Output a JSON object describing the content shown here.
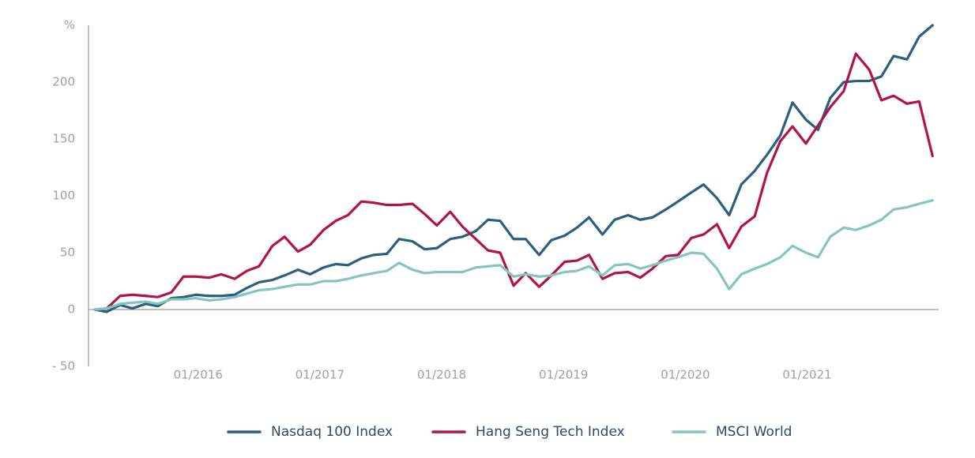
{
  "chart_data": {
    "type": "line",
    "x": [
      2015.15,
      2015.25,
      2015.36,
      2015.46,
      2015.57,
      2015.67,
      2015.78,
      2015.88,
      2015.98,
      2016.09,
      2016.19,
      2016.3,
      2016.4,
      2016.5,
      2016.61,
      2016.71,
      2016.82,
      2016.92,
      2017.03,
      2017.13,
      2017.23,
      2017.34,
      2017.44,
      2017.55,
      2017.65,
      2017.76,
      2017.86,
      2017.96,
      2018.07,
      2018.17,
      2018.28,
      2018.38,
      2018.48,
      2018.59,
      2018.69,
      2018.8,
      2018.9,
      2019.01,
      2019.11,
      2019.21,
      2019.32,
      2019.42,
      2019.53,
      2019.63,
      2019.73,
      2019.84,
      2019.94,
      2020.05,
      2020.15,
      2020.26,
      2020.36,
      2020.46,
      2020.57,
      2020.67,
      2020.78,
      2020.88,
      2020.99,
      2021.09,
      2021.19,
      2021.3,
      2021.4,
      2021.51,
      2021.61,
      2021.71,
      2021.82,
      2021.92,
      2022.03
    ],
    "series": [
      {
        "name": "Nasdaq 100 Index",
        "color": "#2b5f80",
        "values": [
          0,
          -2,
          4,
          1,
          5,
          3,
          10,
          11,
          13,
          12,
          12,
          13,
          19,
          24,
          26,
          30,
          35,
          31,
          37,
          40,
          39,
          45,
          48,
          49,
          62,
          60,
          53,
          54,
          62,
          64,
          69,
          79,
          78,
          62,
          62,
          48,
          61,
          65,
          72,
          81,
          66,
          79,
          83,
          79,
          81,
          88,
          95,
          103,
          110,
          98,
          83,
          110,
          122,
          136,
          153,
          182,
          167,
          158,
          186,
          200,
          201,
          201,
          205,
          223,
          220,
          240,
          250
        ]
      },
      {
        "name": "Hang Seng Tech Index",
        "color": "#b0144a",
        "values": [
          0,
          1,
          12,
          13,
          12,
          11,
          15,
          29,
          29,
          28,
          31,
          27,
          34,
          38,
          56,
          64,
          51,
          57,
          70,
          78,
          83,
          95,
          94,
          92,
          92,
          93,
          84,
          74,
          86,
          73,
          62,
          52,
          50,
          21,
          32,
          20,
          30,
          42,
          43,
          48,
          27,
          32,
          33,
          28,
          36,
          47,
          48,
          63,
          66,
          75,
          54,
          73,
          82,
          120,
          148,
          161,
          146,
          162,
          178,
          192,
          225,
          211,
          184,
          188,
          181,
          183,
          135
        ]
      },
      {
        "name": "MSCI World",
        "color": "#84c6bf",
        "values": [
          0,
          1,
          5,
          6,
          7,
          5,
          9,
          9,
          10,
          8,
          9,
          11,
          14,
          17,
          18,
          20,
          22,
          22,
          25,
          25,
          27,
          30,
          32,
          34,
          41,
          35,
          32,
          33,
          33,
          33,
          37,
          38,
          39,
          29,
          31,
          29,
          30,
          33,
          34,
          38,
          30,
          39,
          40,
          36,
          39,
          43,
          46,
          50,
          49,
          36,
          18,
          31,
          36,
          40,
          46,
          56,
          50,
          46,
          64,
          72,
          70,
          74,
          79,
          88,
          90,
          93,
          96
        ]
      }
    ],
    "xlim": [
      2015.1,
      2022.08
    ],
    "xticks": [
      {
        "value": 2016,
        "label": "01/2016"
      },
      {
        "value": 2017,
        "label": "01/2017"
      },
      {
        "value": 2018,
        "label": "01/2018"
      },
      {
        "value": 2019,
        "label": "01/2019"
      },
      {
        "value": 2020,
        "label": "01/2020"
      },
      {
        "value": 2021,
        "label": "01/2021"
      }
    ],
    "ylim": [
      -50,
      250
    ],
    "yticks": [
      {
        "value": -50,
        "label": "- 50"
      },
      0,
      50,
      100,
      150,
      200,
      {
        "value": 250,
        "label": "%"
      }
    ],
    "grid": false,
    "legend": "bottom"
  }
}
